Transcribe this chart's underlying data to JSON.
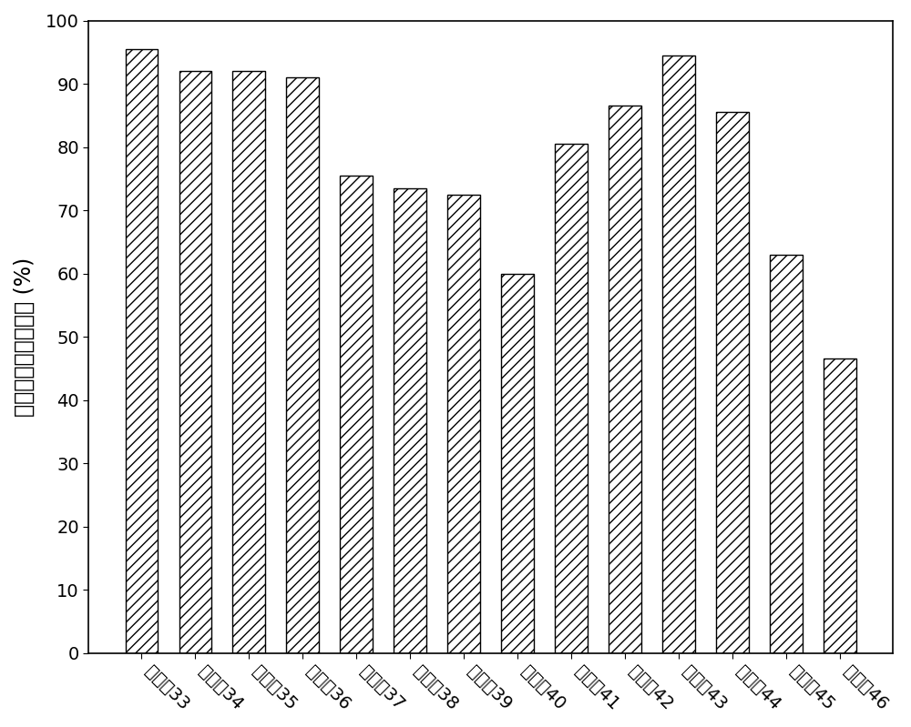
{
  "categories": [
    "实施例33",
    "实施例34",
    "实施例35",
    "实施例36",
    "实施例37",
    "实施例38",
    "实施例39",
    "实施例40",
    "实施例41",
    "实施例42",
    "实施例43",
    "实施例44",
    "实施例45",
    "实施例46"
  ],
  "values": [
    95.5,
    92.0,
    92.0,
    91.0,
    75.5,
    73.5,
    72.5,
    60.0,
    80.5,
    86.5,
    94.5,
    85.5,
    63.0,
    46.5
  ],
  "ylabel": "一氧化碳法拉第效率 (%)",
  "ylim": [
    0,
    100
  ],
  "yticks": [
    0,
    10,
    20,
    30,
    40,
    50,
    60,
    70,
    80,
    90,
    100
  ],
  "bar_color": "#ffffff",
  "bar_edgecolor": "#000000",
  "hatch": "///",
  "background_color": "#ffffff",
  "ylabel_fontsize": 17,
  "tick_fontsize": 14,
  "xlabel_rotation": -45,
  "bar_width": 0.6
}
